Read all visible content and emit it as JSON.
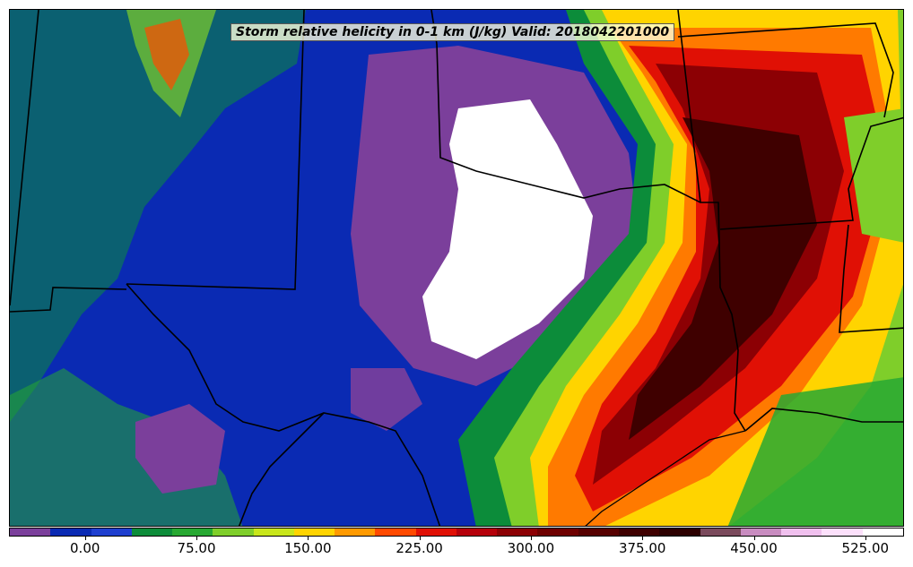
{
  "title": "Storm relative helicity in 0-1 km (J/kg) Valid: 2018042201000",
  "colorbar": {
    "colors": [
      "#7b3f9b",
      "#0a2ab3",
      "#1f3fcf",
      "#0c8c3a",
      "#27a832",
      "#7fce2a",
      "#c8e61b",
      "#ffd400",
      "#ff9a00",
      "#ff4a00",
      "#e01005",
      "#b5000a",
      "#8c0004",
      "#6e0000",
      "#560000",
      "#3f0000",
      "#2c0000",
      "#7a4a5c",
      "#c88cc0",
      "#f0c0ee",
      "#fce0fb",
      "#ffffff"
    ],
    "tick_labels": [
      "0.00",
      "75.00",
      "150.00",
      "225.00",
      "300.00",
      "375.00",
      "450.00",
      "525.00"
    ]
  },
  "palette": {
    "purple": "#7b3f9b",
    "blue": "#0a2ab3",
    "green": "#0c8c3a",
    "lightgreen": "#7fce2a",
    "yellow": "#ffd400",
    "orange": "#ff7a00",
    "red": "#e01005",
    "darkred": "#8c0004",
    "maroon": "#3f0000",
    "white": "#ffffff"
  }
}
